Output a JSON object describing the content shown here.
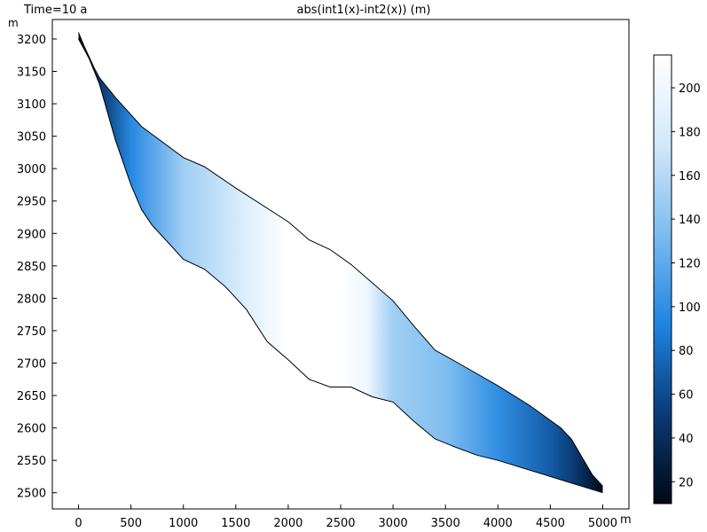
{
  "header": {
    "time_label": "Time=10 a",
    "title": "abs(int1(x)-int2(x)) (m)",
    "y_unit": "m",
    "x_unit": "m"
  },
  "chart_data": {
    "type": "heatmap",
    "title": "abs(int1(x)-int2(x)) (m)",
    "xlabel": "m",
    "ylabel": "m",
    "xlim": [
      -250,
      5250
    ],
    "ylim": [
      2475,
      3230
    ],
    "x_ticks": [
      0,
      500,
      1000,
      1500,
      2000,
      2500,
      3000,
      3500,
      4000,
      4500,
      5000
    ],
    "y_ticks": [
      2500,
      2550,
      2600,
      2650,
      2700,
      2750,
      2800,
      2850,
      2900,
      2950,
      3000,
      3050,
      3100,
      3150,
      3200
    ],
    "grid": false,
    "colorbar": {
      "range": [
        10,
        215
      ],
      "ticks": [
        20,
        40,
        60,
        80,
        100,
        120,
        140,
        160,
        180,
        200
      ],
      "colormap": [
        "#000814",
        "#0a3a78",
        "#1f84e0",
        "#7cbcf0",
        "#d2e8fa",
        "#ffffff"
      ]
    },
    "upper_boundary": [
      [
        0,
        3210
      ],
      [
        50,
        3190
      ],
      [
        150,
        3155
      ],
      [
        200,
        3140
      ],
      [
        350,
        3110
      ],
      [
        600,
        3065
      ],
      [
        1000,
        3017
      ],
      [
        1200,
        3003
      ],
      [
        1500,
        2970
      ],
      [
        2000,
        2918
      ],
      [
        2200,
        2890
      ],
      [
        2400,
        2875
      ],
      [
        2600,
        2852
      ],
      [
        3000,
        2796
      ],
      [
        3200,
        2757
      ],
      [
        3400,
        2720
      ],
      [
        3600,
        2702
      ],
      [
        4000,
        2665
      ],
      [
        4300,
        2635
      ],
      [
        4600,
        2600
      ],
      [
        4700,
        2583
      ],
      [
        4900,
        2528
      ],
      [
        5000,
        2510
      ]
    ],
    "lower_boundary": [
      [
        0,
        3200
      ],
      [
        100,
        3170
      ],
      [
        200,
        3130
      ],
      [
        350,
        3045
      ],
      [
        500,
        2975
      ],
      [
        600,
        2937
      ],
      [
        700,
        2913
      ],
      [
        900,
        2878
      ],
      [
        1000,
        2860
      ],
      [
        1200,
        2845
      ],
      [
        1400,
        2818
      ],
      [
        1600,
        2783
      ],
      [
        1800,
        2733
      ],
      [
        2000,
        2705
      ],
      [
        2200,
        2675
      ],
      [
        2400,
        2663
      ],
      [
        2600,
        2663
      ],
      [
        2800,
        2648
      ],
      [
        3000,
        2640
      ],
      [
        3200,
        2610
      ],
      [
        3400,
        2583
      ],
      [
        3600,
        2570
      ],
      [
        3800,
        2558
      ],
      [
        4000,
        2550
      ],
      [
        4500,
        2525
      ],
      [
        5000,
        2500
      ]
    ],
    "profile": [
      [
        0,
        10
      ],
      [
        200,
        45
      ],
      [
        500,
        95
      ],
      [
        1000,
        150
      ],
      [
        1500,
        175
      ],
      [
        1650,
        190
      ],
      [
        2000,
        215
      ],
      [
        2500,
        215
      ],
      [
        2750,
        200
      ],
      [
        3000,
        150
      ],
      [
        3500,
        135
      ],
      [
        4000,
        100
      ],
      [
        4500,
        70
      ],
      [
        4800,
        40
      ],
      [
        5000,
        10
      ]
    ]
  }
}
